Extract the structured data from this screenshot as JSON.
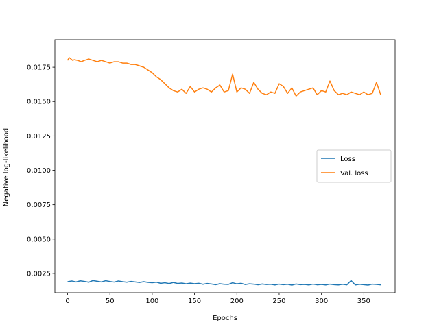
{
  "chart_data": {
    "type": "line",
    "xlabel": "Epochs",
    "ylabel": "Negative log-likelihood",
    "xlim": [
      -15,
      387
    ],
    "ylim": [
      0.0011,
      0.0195
    ],
    "xticks": [
      0,
      50,
      100,
      150,
      200,
      250,
      300,
      350
    ],
    "xtick_labels": [
      "0",
      "50",
      "100",
      "150",
      "200",
      "250",
      "300",
      "350"
    ],
    "yticks": [
      0.0025,
      0.005,
      0.0075,
      0.01,
      0.0125,
      0.015,
      0.0175
    ],
    "ytick_labels": [
      "0.0025",
      "0.0050",
      "0.0075",
      "0.0100",
      "0.0125",
      "0.0150",
      "0.0175"
    ],
    "grid": false,
    "legend_position": "center-right",
    "series": [
      {
        "name": "Loss",
        "color": "#1f77b4",
        "x": [
          0,
          5,
          10,
          15,
          20,
          25,
          30,
          35,
          40,
          45,
          50,
          55,
          60,
          65,
          70,
          75,
          80,
          85,
          90,
          95,
          100,
          105,
          110,
          115,
          120,
          125,
          130,
          135,
          140,
          145,
          150,
          155,
          160,
          165,
          170,
          175,
          180,
          185,
          190,
          195,
          200,
          205,
          210,
          215,
          220,
          225,
          230,
          235,
          240,
          245,
          250,
          255,
          260,
          265,
          270,
          275,
          280,
          285,
          290,
          295,
          300,
          305,
          310,
          315,
          320,
          325,
          330,
          335,
          340,
          345,
          350,
          355,
          360,
          365,
          370
        ],
        "y": [
          0.0019,
          0.00195,
          0.00188,
          0.00196,
          0.00192,
          0.00186,
          0.00198,
          0.00193,
          0.00188,
          0.00197,
          0.00191,
          0.00187,
          0.00195,
          0.0019,
          0.00186,
          0.00192,
          0.00188,
          0.00184,
          0.0019,
          0.00185,
          0.00182,
          0.00186,
          0.00178,
          0.00182,
          0.00176,
          0.00184,
          0.00177,
          0.0018,
          0.00174,
          0.00179,
          0.00175,
          0.00178,
          0.00171,
          0.00177,
          0.00173,
          0.00168,
          0.00175,
          0.00171,
          0.0017,
          0.00182,
          0.00174,
          0.00178,
          0.00169,
          0.00174,
          0.00172,
          0.00167,
          0.00173,
          0.00169,
          0.00171,
          0.00166,
          0.00172,
          0.00168,
          0.00171,
          0.00165,
          0.00173,
          0.00168,
          0.0017,
          0.00166,
          0.00172,
          0.00167,
          0.0017,
          0.00166,
          0.00172,
          0.00168,
          0.00166,
          0.00171,
          0.00167,
          0.00198,
          0.00166,
          0.00171,
          0.00168,
          0.00165,
          0.00172,
          0.0017,
          0.00167
        ]
      },
      {
        "name": "Val. loss",
        "color": "#ff7f0e",
        "x": [
          0,
          2,
          4,
          6,
          8,
          12,
          16,
          20,
          25,
          30,
          35,
          40,
          45,
          50,
          55,
          60,
          65,
          70,
          75,
          80,
          85,
          90,
          95,
          100,
          105,
          110,
          115,
          120,
          125,
          130,
          135,
          140,
          145,
          150,
          155,
          160,
          165,
          170,
          175,
          180,
          185,
          190,
          195,
          200,
          205,
          210,
          215,
          220,
          225,
          230,
          235,
          240,
          245,
          250,
          255,
          260,
          265,
          270,
          275,
          280,
          285,
          290,
          295,
          300,
          305,
          310,
          315,
          320,
          325,
          330,
          335,
          340,
          345,
          350,
          355,
          360,
          365,
          370
        ],
        "y": [
          0.018,
          0.0182,
          0.0181,
          0.018,
          0.01805,
          0.018,
          0.0179,
          0.018,
          0.0181,
          0.018,
          0.0179,
          0.018,
          0.0179,
          0.0178,
          0.0179,
          0.0179,
          0.0178,
          0.0178,
          0.0177,
          0.0177,
          0.0176,
          0.0175,
          0.0173,
          0.0171,
          0.0168,
          0.0166,
          0.0163,
          0.016,
          0.0158,
          0.0157,
          0.0159,
          0.0156,
          0.0161,
          0.0157,
          0.0159,
          0.016,
          0.0159,
          0.0157,
          0.016,
          0.0162,
          0.0157,
          0.0158,
          0.017,
          0.0157,
          0.016,
          0.0159,
          0.0156,
          0.0164,
          0.0159,
          0.0156,
          0.0155,
          0.0157,
          0.0156,
          0.0163,
          0.0161,
          0.0156,
          0.016,
          0.0154,
          0.0157,
          0.0158,
          0.0159,
          0.016,
          0.0155,
          0.0158,
          0.0157,
          0.0165,
          0.0158,
          0.0155,
          0.0156,
          0.0155,
          0.0157,
          0.0156,
          0.0155,
          0.0157,
          0.0155,
          0.0156,
          0.0164,
          0.0155
        ]
      }
    ]
  }
}
